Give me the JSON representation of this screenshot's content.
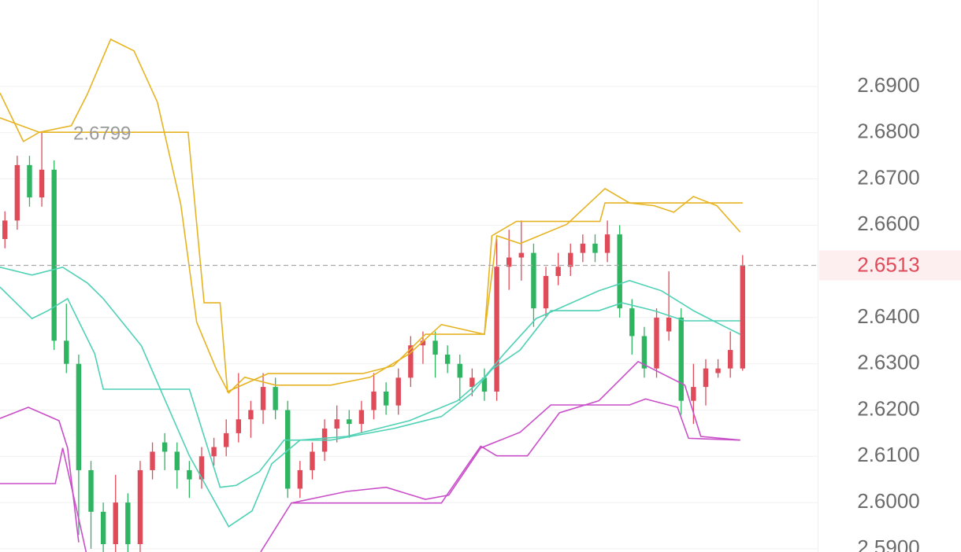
{
  "chart_data": {
    "type": "candlestick",
    "open": [
      2.657,
      2.661,
      2.673,
      2.666,
      2.672,
      2.635,
      2.63,
      2.607,
      2.598,
      2.591,
      2.6,
      2.591,
      2.607,
      2.613,
      2.611,
      2.607,
      2.605,
      2.61,
      2.612,
      2.615,
      2.618,
      2.62,
      2.625,
      2.62,
      2.603,
      2.607,
      2.611,
      2.616,
      2.618,
      2.617,
      2.62,
      2.624,
      2.621,
      2.627,
      2.634,
      2.635,
      2.632,
      2.63,
      2.625,
      2.627,
      2.624,
      2.651,
      2.653,
      2.654,
      2.642,
      2.649,
      2.651,
      2.654,
      2.656,
      2.654,
      2.658,
      2.642,
      2.636,
      2.629,
      2.637,
      2.64,
      2.622,
      2.625,
      2.628,
      2.629,
      2.629
    ],
    "high": [
      2.663,
      2.675,
      2.675,
      2.68,
      2.674,
      2.643,
      2.632,
      2.609,
      2.6,
      2.606,
      2.602,
      2.609,
      2.613,
      2.615,
      2.613,
      2.609,
      2.612,
      2.614,
      2.618,
      2.628,
      2.622,
      2.628,
      2.627,
      2.622,
      2.609,
      2.613,
      2.618,
      2.621,
      2.62,
      2.622,
      2.628,
      2.626,
      2.629,
      2.636,
      2.637,
      2.637,
      2.634,
      2.632,
      2.629,
      2.629,
      2.657,
      2.659,
      2.661,
      2.656,
      2.651,
      2.654,
      2.656,
      2.658,
      2.658,
      2.661,
      2.66,
      2.644,
      2.638,
      2.642,
      2.65,
      2.642,
      2.63,
      2.631,
      2.631,
      2.637,
      2.6535
    ],
    "low": [
      2.655,
      2.659,
      2.664,
      2.664,
      2.633,
      2.628,
      2.593,
      2.59,
      2.589,
      2.589,
      2.589,
      2.589,
      2.605,
      2.607,
      2.603,
      2.601,
      2.603,
      2.608,
      2.61,
      2.613,
      2.614,
      2.617,
      2.618,
      2.601,
      2.601,
      2.605,
      2.609,
      2.613,
      2.614,
      2.615,
      2.618,
      2.619,
      2.619,
      2.625,
      2.63,
      2.627,
      2.628,
      2.622,
      2.623,
      2.622,
      2.622,
      2.646,
      2.648,
      2.638,
      2.64,
      2.647,
      2.649,
      2.652,
      2.652,
      2.652,
      2.64,
      2.632,
      2.627,
      2.627,
      2.635,
      2.619,
      2.617,
      2.621,
      2.627,
      2.627,
      2.6285
    ],
    "close": [
      2.661,
      2.673,
      2.666,
      2.672,
      2.635,
      2.63,
      2.607,
      2.598,
      2.591,
      2.6,
      2.591,
      2.607,
      2.611,
      2.611,
      2.607,
      2.605,
      2.61,
      2.612,
      2.615,
      2.618,
      2.62,
      2.625,
      2.62,
      2.603,
      2.607,
      2.611,
      2.616,
      2.618,
      2.617,
      2.62,
      2.624,
      2.621,
      2.627,
      2.634,
      2.635,
      2.632,
      2.63,
      2.627,
      2.627,
      2.624,
      2.651,
      2.653,
      2.654,
      2.642,
      2.649,
      2.651,
      2.654,
      2.656,
      2.654,
      2.658,
      2.642,
      2.636,
      2.629,
      2.64,
      2.64,
      2.622,
      2.625,
      2.629,
      2.629,
      2.633,
      2.6513
    ],
    "up_color": "#e04b5a",
    "down_color": "#2fb562",
    "lines": [
      {
        "color": "#e6b422",
        "x": [
          -0.4,
          1.5,
          2.8,
          5.4,
          6.7,
          8.6,
          10.5,
          12.4,
          14.3,
          15.6,
          17.2,
          18.2,
          19.5,
          22.0,
          26.5,
          29.7,
          32.9,
          35.5,
          39.0,
          40.0,
          41.9,
          45.7,
          48.8,
          50.8,
          52.8,
          54.4,
          56.0,
          57.9,
          59.8
        ],
        "values": [
          2.6886,
          2.6781,
          2.6801,
          2.6815,
          2.6883,
          2.7002,
          2.6977,
          2.6866,
          2.6645,
          2.639,
          2.6288,
          2.6237,
          2.6271,
          2.6254,
          2.6254,
          2.6271,
          2.6322,
          2.6385,
          2.6364,
          2.6577,
          2.656,
          2.6602,
          2.6679,
          2.6648,
          2.6642,
          2.6628,
          2.6662,
          2.6642,
          2.6585
        ]
      },
      {
        "color": "#e6b422",
        "x": [
          -0.4,
          2.8,
          14.9,
          16.2,
          17.5,
          18.1,
          21.4,
          29.1,
          31.6,
          34.2,
          39.0,
          39.6,
          41.6,
          48.4,
          48.8,
          60.0
        ],
        "values": [
          2.6832,
          2.6801,
          2.6801,
          2.6432,
          2.6432,
          2.624,
          2.6279,
          2.6279,
          2.6296,
          2.6364,
          2.6364,
          2.6577,
          2.6608,
          2.6608,
          2.6648,
          2.6648
        ]
      },
      {
        "color": "#4fd1b5",
        "x": [
          -0.4,
          2.2,
          4.7,
          6.7,
          8.0,
          11.1,
          15.0,
          18.2,
          20.1,
          21.7,
          24.0,
          27.8,
          32.9,
          36.8,
          39.0,
          40.6,
          43.2,
          48.3,
          50.8,
          53.4,
          56.0,
          58.5,
          59.8
        ],
        "values": [
          2.6509,
          2.6492,
          2.6509,
          2.6475,
          2.6441,
          2.6339,
          2.6101,
          2.5948,
          2.5982,
          2.6084,
          2.6135,
          2.6143,
          2.6177,
          2.622,
          2.6271,
          2.6322,
          2.6398,
          2.6458,
          2.648,
          2.6458,
          2.6415,
          2.6381,
          2.6364
        ]
      },
      {
        "color": "#4fd1b5",
        "x": [
          -0.4,
          2.2,
          3.5,
          5.1,
          7.3,
          8.0,
          15.0,
          16.9,
          17.5,
          18.8,
          20.7,
          22.7,
          26.5,
          31.6,
          35.5,
          38.0,
          39.6,
          41.9,
          44.4,
          48.3,
          50.2,
          52.8,
          55.3,
          59.8
        ],
        "values": [
          2.6466,
          2.6398,
          2.6415,
          2.6441,
          2.6322,
          2.6245,
          2.6245,
          2.6084,
          2.6033,
          2.6037,
          2.6067,
          2.6135,
          2.6135,
          2.616,
          2.6186,
          2.6237,
          2.6288,
          2.633,
          2.6415,
          2.6415,
          2.6432,
          2.6415,
          2.6393,
          2.6393
        ]
      },
      {
        "color": "#c94fc9",
        "x": [
          -0.4,
          1.9,
          4.4,
          5.1,
          6.0,
          6.2,
          20.8,
          23.3,
          27.8,
          31.0,
          34.2,
          36.1,
          38.7,
          41.9,
          44.4,
          50.8,
          52.1,
          54.7,
          55.6,
          59.8
        ],
        "values": [
          2.6182,
          2.6206,
          2.6177,
          2.6118,
          2.5914,
          null,
          2.5893,
          2.5999,
          2.6024,
          2.6033,
          2.6007,
          2.6016,
          2.6118,
          2.6152,
          2.6211,
          2.6211,
          2.6224,
          2.6206,
          2.6139,
          2.6135
        ]
      },
      {
        "color": "#c94fc9",
        "x": [
          -0.4,
          4.1,
          4.7,
          6.0,
          6.6,
          7.0,
          23.3,
          35.5,
          37.7,
          38.7,
          40.0,
          42.5,
          45.1,
          48.3,
          51.5,
          55.3,
          56.6,
          59.8
        ],
        "values": [
          2.6041,
          2.6041,
          2.6118,
          2.5965,
          2.5893,
          null,
          2.5999,
          2.5999,
          2.6084,
          2.6122,
          2.6101,
          2.6101,
          2.6194,
          2.622,
          2.6305,
          2.6254,
          2.6143,
          2.6135
        ]
      }
    ],
    "xlim": [
      -0.4,
      66.1
    ],
    "ylim": [
      2.5893,
      2.7087
    ],
    "yticks": [
      {
        "value": 2.69,
        "label": "2.6900"
      },
      {
        "value": 2.68,
        "label": "2.6800"
      },
      {
        "value": 2.67,
        "label": "2.6700"
      },
      {
        "value": 2.66,
        "label": "2.6600"
      },
      {
        "value": 2.64,
        "label": "2.6400"
      },
      {
        "value": 2.63,
        "label": "2.6300"
      },
      {
        "value": 2.62,
        "label": "2.6200"
      },
      {
        "value": 2.61,
        "label": "2.6100"
      },
      {
        "value": 2.6,
        "label": "2.6000"
      },
      {
        "value": 2.59,
        "label": "2.5900"
      }
    ],
    "grid": true,
    "high_marker": 2.6799,
    "current_price": 2.6513,
    "current_price_color": "#e04b5a"
  }
}
